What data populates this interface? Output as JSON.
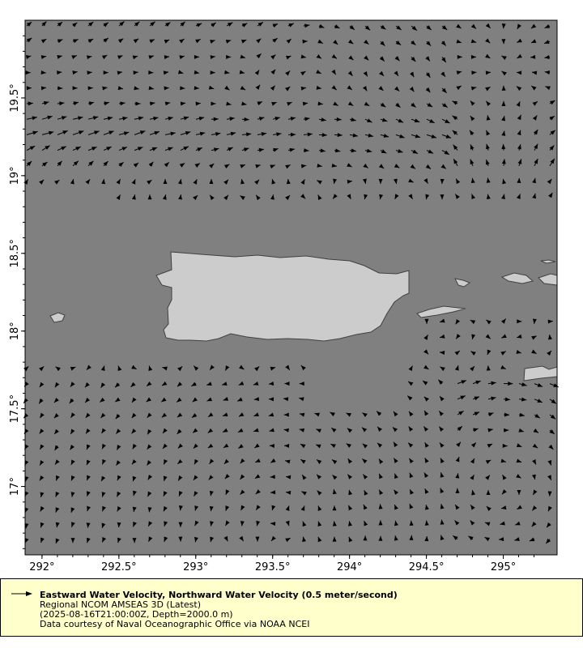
{
  "map": {
    "lon_range": [
      291.89,
      295.35
    ],
    "lat_range": [
      16.56,
      20.0
    ],
    "x_ticks": [
      "292°",
      "292.5°",
      "293°",
      "293.5°",
      "294°",
      "294.5°",
      "295°"
    ],
    "y_ticks": [
      "17°",
      "17.5°",
      "18°",
      "18.5°",
      "19°",
      "19.5°"
    ],
    "colors": {
      "ocean": "#808080",
      "land": "#cccccc",
      "coast": "#404040",
      "arrow": "#000000",
      "legend_bg": "#ffffcc"
    }
  },
  "legend": {
    "title": "Eastward Water Velocity, Northward Water Velocity (0.5 meter/second)",
    "line1": "Regional NCOM AMSEAS 3D (Latest)",
    "line2": "(2025-08-16T21:00:00Z, Depth=2000.0 m)",
    "line3": "Data courtesy of Naval Oceanographic Office via NOAA NCEI"
  }
}
